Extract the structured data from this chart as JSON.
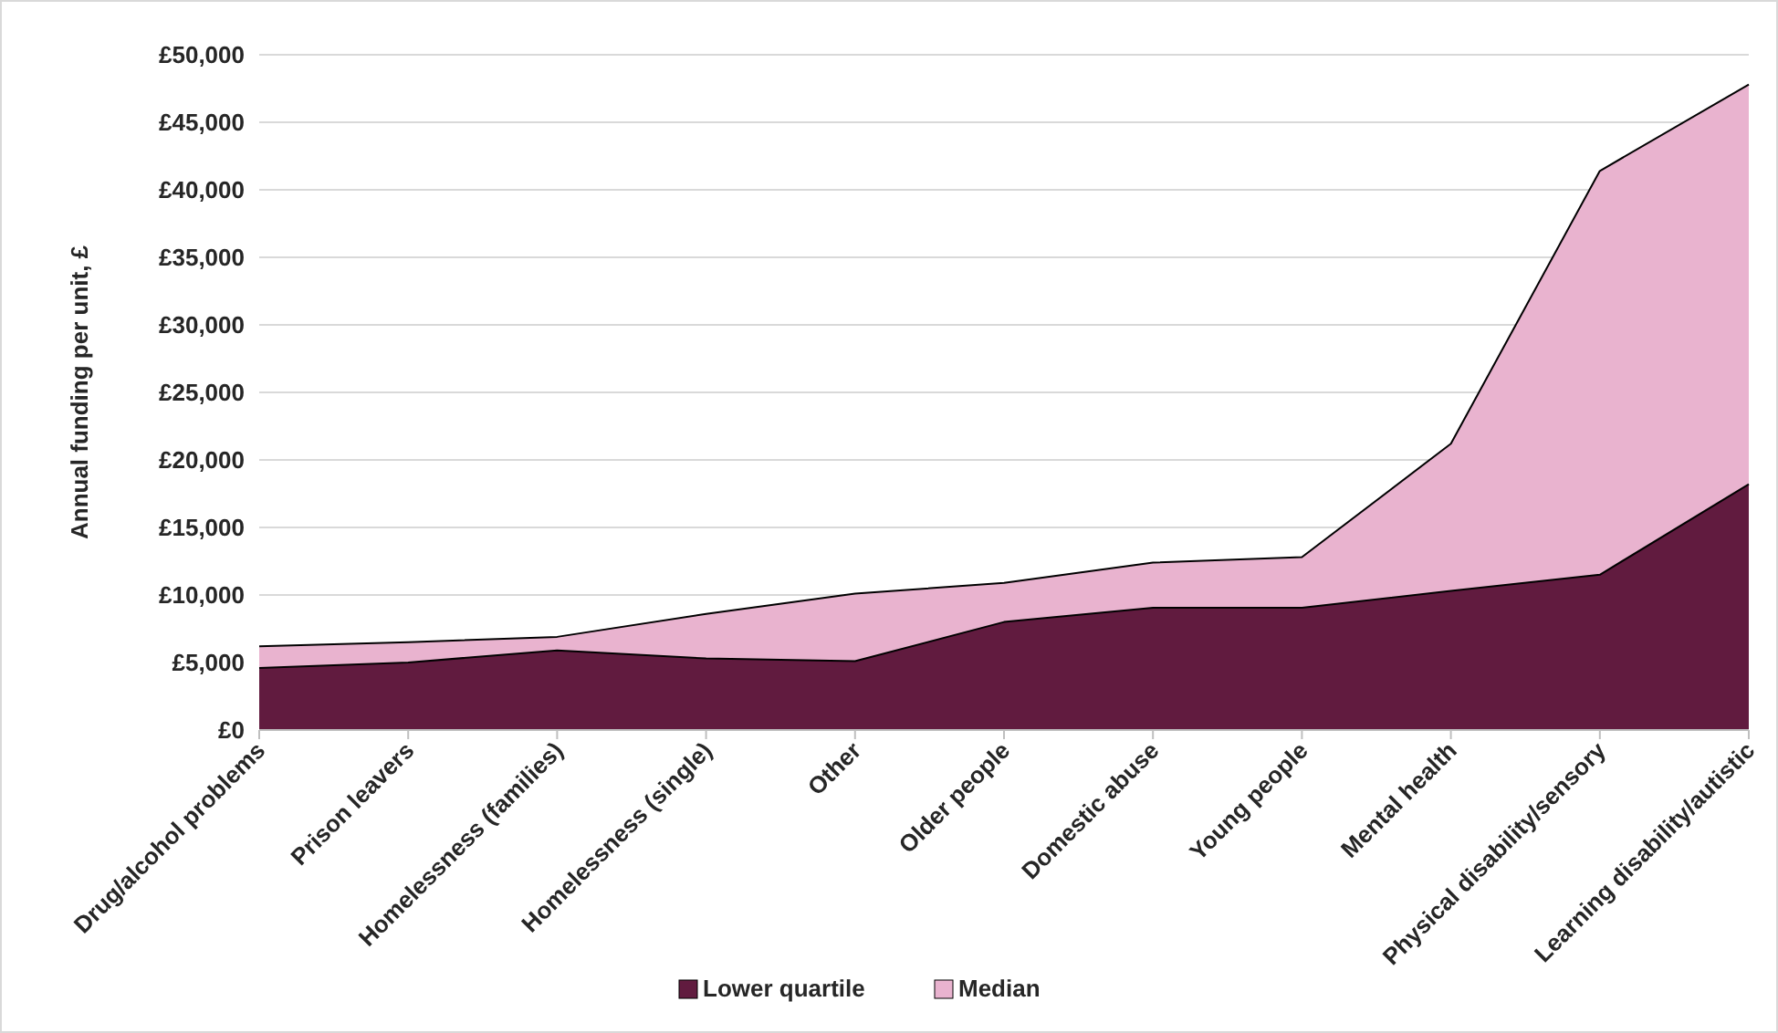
{
  "chart_data": {
    "type": "area",
    "ylabel": "Annual funding per unit, £",
    "categories": [
      "Drug/alcohol problems",
      "Prison leavers",
      "Homelessness (families)",
      "Homelessness (single)",
      "Other",
      "Older people",
      "Domestic abuse",
      "Young people",
      "Mental health",
      "Physical disability/sensory",
      "Learning disability/autistic"
    ],
    "series": [
      {
        "name": "Lower quartile",
        "color": "#611b3f",
        "values": [
          4600,
          5000,
          5900,
          5300,
          5100,
          8000,
          9050,
          9050,
          10300,
          11500,
          18200
        ]
      },
      {
        "name": "Median",
        "color": "#e9b3cf",
        "values": [
          6200,
          6500,
          6900,
          8600,
          10100,
          10900,
          12400,
          12800,
          21200,
          41400,
          47800
        ]
      }
    ],
    "ylim": [
      0,
      50000
    ],
    "yticks": [
      {
        "value": 0,
        "label": "£0"
      },
      {
        "value": 5000,
        "label": "£5,000"
      },
      {
        "value": 10000,
        "label": "£10,000"
      },
      {
        "value": 15000,
        "label": "£15,000"
      },
      {
        "value": 20000,
        "label": "£20,000"
      },
      {
        "value": 25000,
        "label": "£25,000"
      },
      {
        "value": 30000,
        "label": "£30,000"
      },
      {
        "value": 35000,
        "label": "£35,000"
      },
      {
        "value": 40000,
        "label": "£40,000"
      },
      {
        "value": 45000,
        "label": "£45,000"
      },
      {
        "value": 50000,
        "label": "£50,000"
      }
    ],
    "grid": "y",
    "legend": "bottom"
  }
}
